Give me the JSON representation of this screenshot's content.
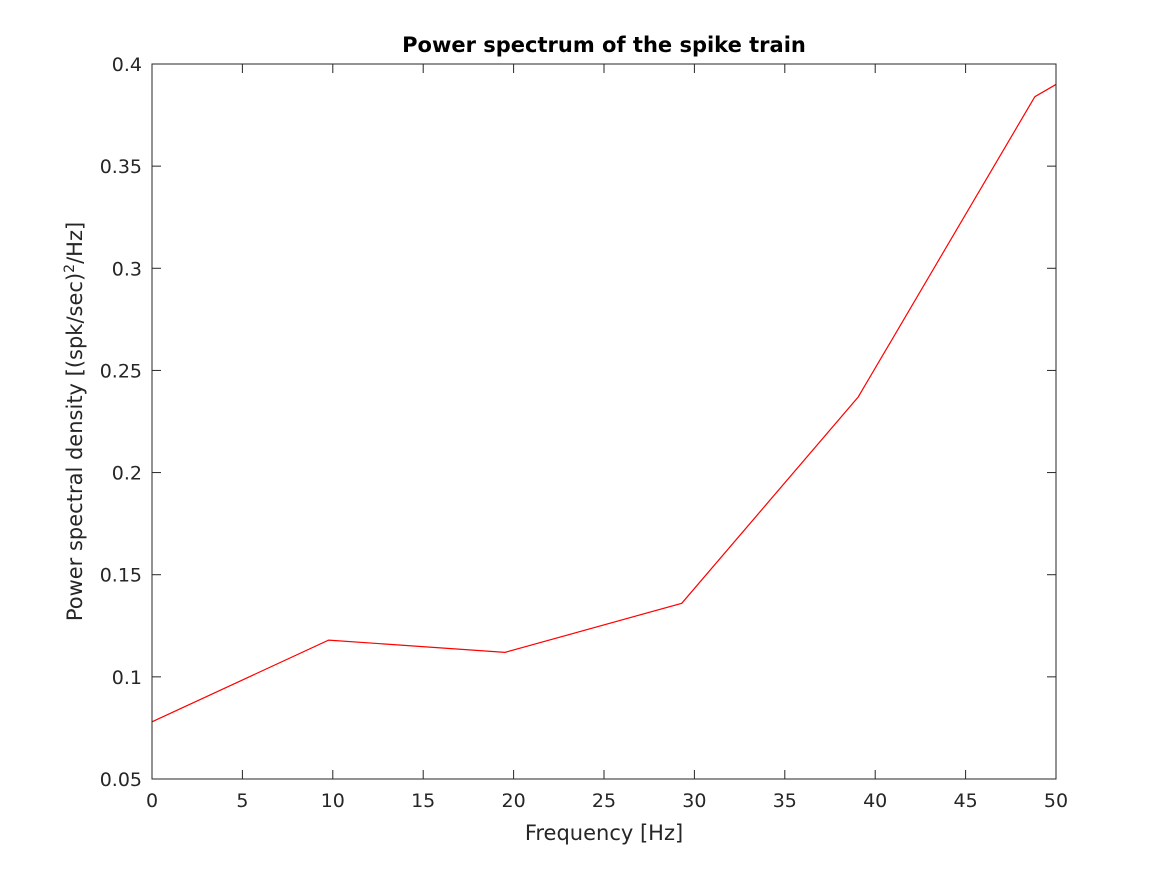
{
  "chart_data": {
    "type": "line",
    "title": "Power spectrum of the spike train",
    "xlabel": "Frequency [Hz]",
    "ylabel_main": "Power spectral density [(spk/sec)",
    "ylabel_sup": "2",
    "ylabel_tail": "/Hz]",
    "xlim": [
      0,
      50
    ],
    "ylim": [
      0.05,
      0.4
    ],
    "xticks": [
      0,
      5,
      10,
      15,
      20,
      25,
      30,
      35,
      40,
      45,
      50
    ],
    "xtick_labels": [
      "0",
      "5",
      "10",
      "15",
      "20",
      "25",
      "30",
      "35",
      "40",
      "45",
      "50"
    ],
    "yticks": [
      0.05,
      0.1,
      0.15,
      0.2,
      0.25,
      0.3,
      0.35,
      0.4
    ],
    "ytick_labels": [
      "0.05",
      "0.1",
      "0.15",
      "0.2",
      "0.25",
      "0.3",
      "0.35",
      "0.4"
    ],
    "grid": false,
    "series": [
      {
        "color": "#ff0000",
        "x": [
          0,
          9.77,
          19.53,
          29.3,
          39.06,
          48.83,
          50
        ],
        "y": [
          0.078,
          0.118,
          0.112,
          0.136,
          0.237,
          0.384,
          0.39
        ]
      }
    ],
    "colors": {
      "axis": "#262626",
      "title": "#000000",
      "line": "#ff0000"
    }
  }
}
